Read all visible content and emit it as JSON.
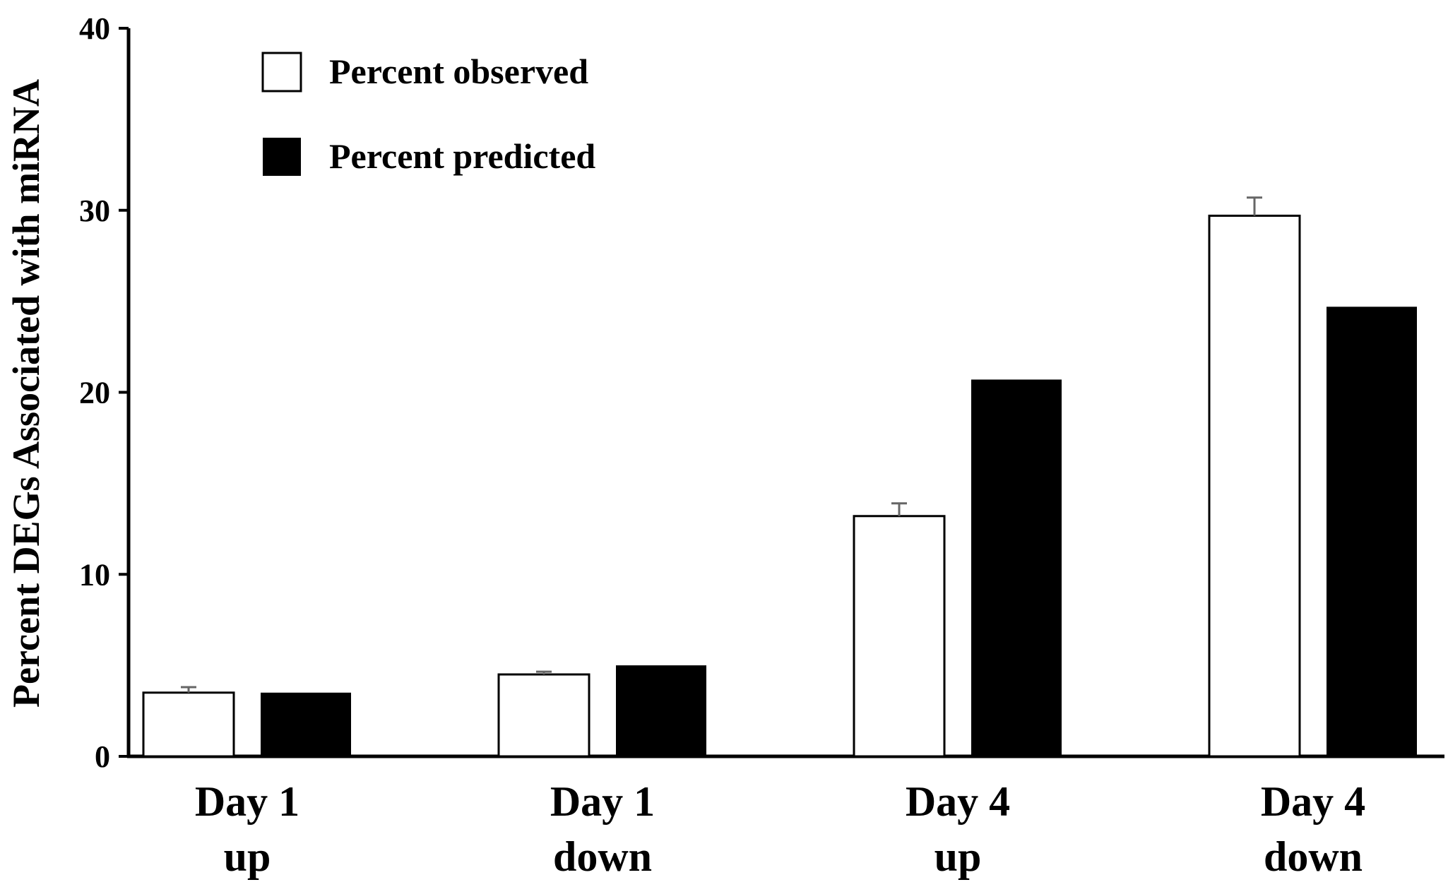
{
  "chart_data": {
    "type": "bar",
    "ylabel": "Percent DEGs Associated with miRNA",
    "xlabel": "",
    "ylim": [
      0,
      40
    ],
    "yticks": [
      0,
      10,
      20,
      30,
      40
    ],
    "categories": [
      [
        "Day 1",
        "up"
      ],
      [
        "Day 1",
        "down"
      ],
      [
        "Day 4",
        "up"
      ],
      [
        "Day 4",
        "down"
      ]
    ],
    "series": [
      {
        "name": "Percent observed",
        "fill": "#ffffff",
        "stroke": "#000000",
        "values": [
          3.5,
          4.5,
          13.2,
          29.7
        ],
        "error_bars": [
          0.3,
          0.15,
          0.7,
          1.0
        ]
      },
      {
        "name": "Percent predicted",
        "fill": "#000000",
        "stroke": "#000000",
        "values": [
          3.5,
          5.0,
          20.7,
          24.7
        ],
        "error_bars": null
      }
    ],
    "legend_position": "top-left",
    "grid": false
  }
}
